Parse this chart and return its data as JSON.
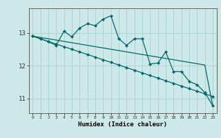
{
  "xlabel": "Humidex (Indice chaleur)",
  "ylabel": "",
  "bg_color": "#cce8e8",
  "plot_bg_color": "#cce8e8",
  "line_color": "#006868",
  "grid_color": "#aacece",
  "x_values": [
    0,
    1,
    2,
    3,
    4,
    5,
    6,
    7,
    8,
    9,
    10,
    11,
    12,
    13,
    14,
    15,
    16,
    17,
    18,
    19,
    20,
    21,
    22,
    23
  ],
  "y_main": [
    12.9,
    12.82,
    12.73,
    12.62,
    13.05,
    12.88,
    13.15,
    13.28,
    13.22,
    13.42,
    13.52,
    12.82,
    12.62,
    12.82,
    12.82,
    12.05,
    12.08,
    12.42,
    11.82,
    11.82,
    11.52,
    11.42,
    11.18,
    10.78
  ],
  "y_line2": [
    12.9,
    12.82,
    12.74,
    12.66,
    12.58,
    12.5,
    12.42,
    12.34,
    12.26,
    12.18,
    12.1,
    12.02,
    11.94,
    11.86,
    11.78,
    11.7,
    11.62,
    11.54,
    11.46,
    11.38,
    11.3,
    11.22,
    11.14,
    11.06
  ],
  "y_line3": [
    12.9,
    12.86,
    12.82,
    12.78,
    12.74,
    12.7,
    12.66,
    12.62,
    12.58,
    12.54,
    12.5,
    12.46,
    12.42,
    12.38,
    12.34,
    12.3,
    12.26,
    12.22,
    12.18,
    12.14,
    12.1,
    12.06,
    12.02,
    10.78
  ],
  "ylim": [
    10.55,
    13.75
  ],
  "xlim": [
    -0.5,
    23.5
  ],
  "yticks": [
    11,
    12,
    13
  ],
  "xticks": [
    0,
    1,
    2,
    3,
    4,
    5,
    6,
    7,
    8,
    9,
    10,
    11,
    12,
    13,
    14,
    15,
    16,
    17,
    18,
    19,
    20,
    21,
    22,
    23
  ],
  "marker": "D",
  "markersize": 2.2,
  "linewidth": 0.9
}
